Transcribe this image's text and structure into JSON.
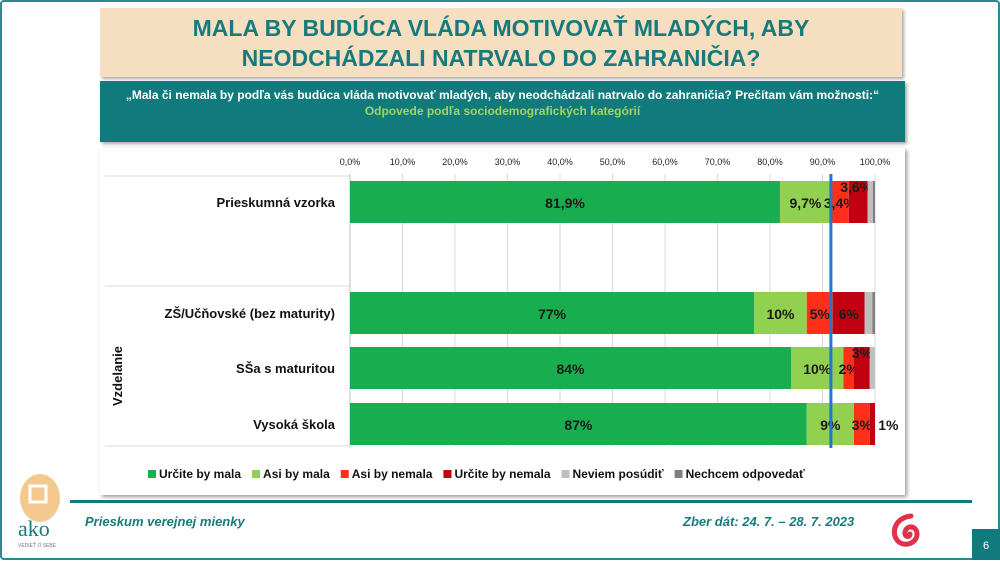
{
  "title": "MALA BY BUDÚCA VLÁDA MOTIVOVAŤ MLADÝCH, ABY NEODCHÁDZALI NATRVALO DO ZAHRANIČIA?",
  "question": "„Mala či nemala by podľa vás budúca vláda motivovať mladých, aby neodchádzali natrvalo do zahraničia? Prečítam vám možnosti:“",
  "subtitle": "Odpovede podľa sociodemografických kategórií",
  "footer": {
    "left": "Prieskum verejnej mienky",
    "right": "Zber dát: 24. 7. – 28. 7. 2023",
    "page": "6",
    "logo_text": "ako",
    "logo_tagline": "VEDIEŤ O SEBE"
  },
  "chart_data": {
    "type": "bar",
    "orientation": "horizontal",
    "stacked": true,
    "xlim": [
      0,
      100
    ],
    "x_ticks": [
      "0,0%",
      "10,0%",
      "20,0%",
      "30,0%",
      "40,0%",
      "50,0%",
      "60,0%",
      "70,0%",
      "80,0%",
      "90,0%",
      "100,0%"
    ],
    "group_label": "Vzdelanie",
    "categories": [
      "Prieskumná vzorka",
      "ZŠ/Učňovské (bez maturity)",
      "SŠa s maturitou",
      "Vysoká škola"
    ],
    "series": [
      {
        "name": "Určite by mala",
        "color": "#18ad4f",
        "values": [
          81.9,
          77,
          84,
          87
        ],
        "labels": [
          "81,9%",
          "77%",
          "84%",
          "87%"
        ]
      },
      {
        "name": "Asi by mala",
        "color": "#92d050",
        "values": [
          9.7,
          10,
          10,
          9
        ],
        "labels": [
          "9,7%",
          "10%",
          "10%",
          "9%"
        ]
      },
      {
        "name": "Asi by nemala",
        "color": "#ff3019",
        "values": [
          3.4,
          5,
          2,
          3
        ],
        "labels": [
          "3,4%",
          "5%",
          "2%",
          "3%"
        ]
      },
      {
        "name": "Určite by nemala",
        "color": "#c00010",
        "values": [
          3.6,
          6,
          3,
          1
        ],
        "labels": [
          "3,6%",
          "6%",
          "3%",
          "1%"
        ]
      },
      {
        "name": "Neviem posúdiť",
        "color": "#bfbfbf",
        "values": [
          1.0,
          1.5,
          1.0,
          0
        ],
        "labels": [
          "",
          "",
          "",
          ""
        ]
      },
      {
        "name": "Nechcem odpovedať",
        "color": "#7f7f7f",
        "values": [
          0.4,
          0.5,
          0,
          0
        ],
        "labels": [
          "",
          "",
          "",
          ""
        ]
      }
    ],
    "reference_line": {
      "value": 91.6,
      "color": "#1f78c8"
    },
    "grid": true,
    "legend": "bottom"
  }
}
